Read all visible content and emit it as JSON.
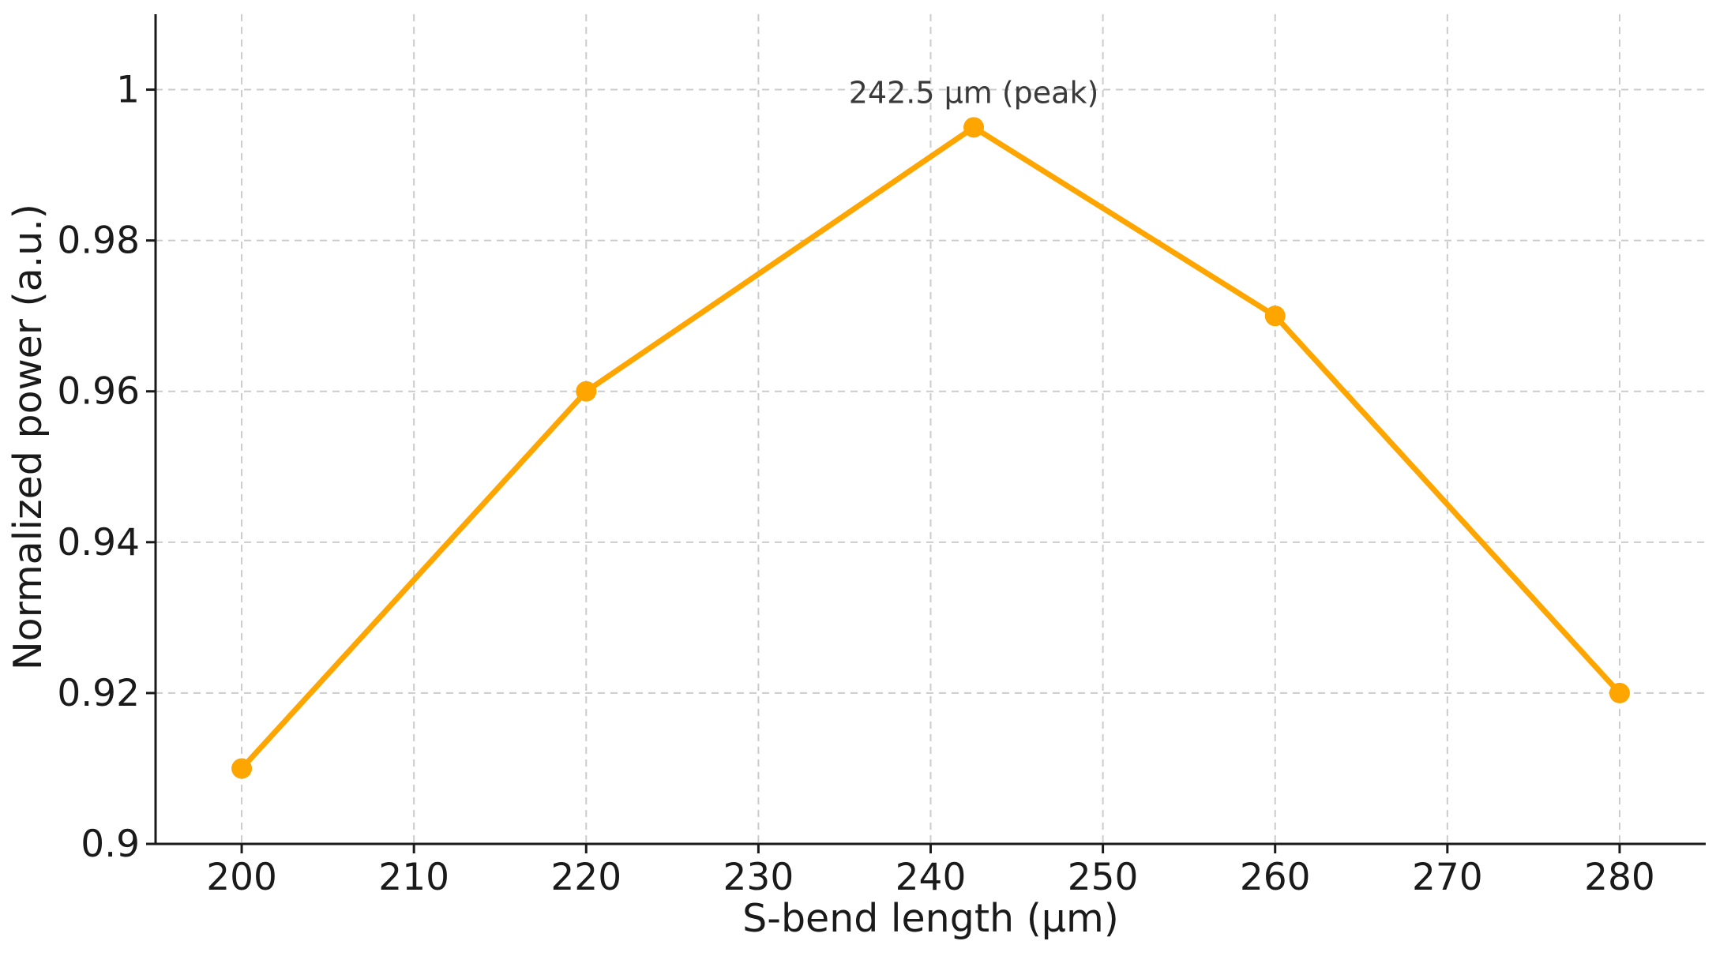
{
  "chart_data": {
    "type": "line",
    "title": "",
    "xlabel": "S-bend length (µm)",
    "ylabel": "Normalized power (a.u.)",
    "xlim": [
      195,
      285
    ],
    "ylim": [
      0.9,
      1.01
    ],
    "x_ticks": [
      200,
      210,
      220,
      230,
      240,
      250,
      260,
      270,
      280
    ],
    "y_ticks": [
      0.9,
      0.92,
      0.94,
      0.96,
      0.98,
      1.0
    ],
    "x_tick_labels": [
      "200",
      "210",
      "220",
      "230",
      "240",
      "250",
      "260",
      "270",
      "280"
    ],
    "y_tick_labels": [
      "0.9",
      "0.92",
      "0.94",
      "0.96",
      "0.98",
      "1"
    ],
    "grid": true,
    "series": [
      {
        "color": "#FFA500",
        "marker": "circle",
        "x": [
          200,
          220,
          242.5,
          260,
          280
        ],
        "values": [
          0.91,
          0.96,
          0.995,
          0.97,
          0.92
        ]
      }
    ],
    "annotations": [
      {
        "text": "242.5 µm (peak)",
        "x": 242.5,
        "y": 0.995
      }
    ]
  }
}
